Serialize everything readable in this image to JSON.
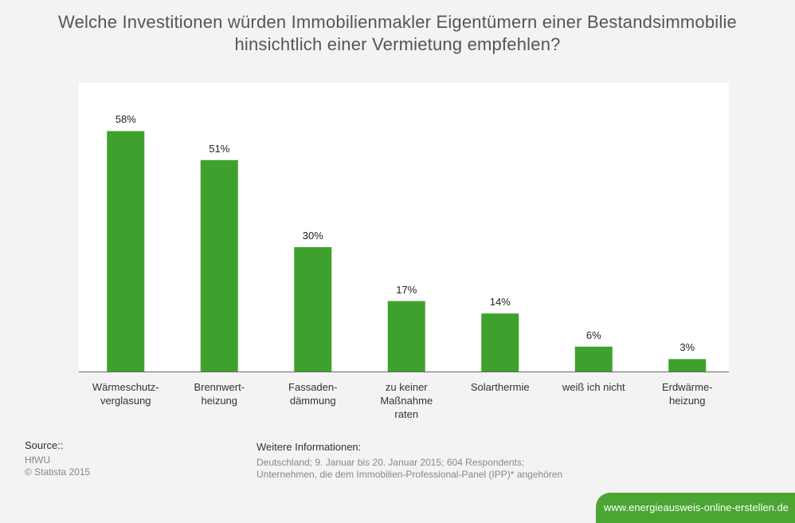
{
  "title": {
    "line1": "Welche Investitionen würden Immobilienmakler Eigentümern einer Bestandsimmobilie",
    "line2": "hinsichtlich einer Vermietung empfehlen?"
  },
  "chart_data": {
    "type": "bar",
    "categories": [
      [
        "Wärmeschutz-",
        "verglasung"
      ],
      [
        "Brennwert-",
        "heizung"
      ],
      [
        "Fassaden-",
        "dämmung"
      ],
      [
        "zu keiner",
        "Maßnahme",
        "raten"
      ],
      [
        "Solarthermie"
      ],
      [
        "weiß ich nicht"
      ],
      [
        "Erdwärme-",
        "heizung"
      ]
    ],
    "values": [
      58,
      51,
      30,
      17,
      14,
      6,
      3
    ],
    "value_labels": [
      "58%",
      "51%",
      "30%",
      "17%",
      "14%",
      "6%",
      "3%"
    ],
    "bar_color": "#3fa12d",
    "ylim": [
      0,
      65
    ],
    "grid": false
  },
  "source": {
    "heading": "Source::",
    "lines": [
      "HfWU",
      "© Statista 2015"
    ]
  },
  "info": {
    "heading": "Weitere Informationen:",
    "lines": [
      "Deutschland; 9. Januar bis 20. Januar 2015; 604 Respondents;",
      "Unternehmen, die dem Immobilien-Professional-Panel (IPP)* angehören"
    ]
  },
  "badge": {
    "text": "www.energieausweis-online-erstellen.de",
    "color": "#4aa532"
  }
}
